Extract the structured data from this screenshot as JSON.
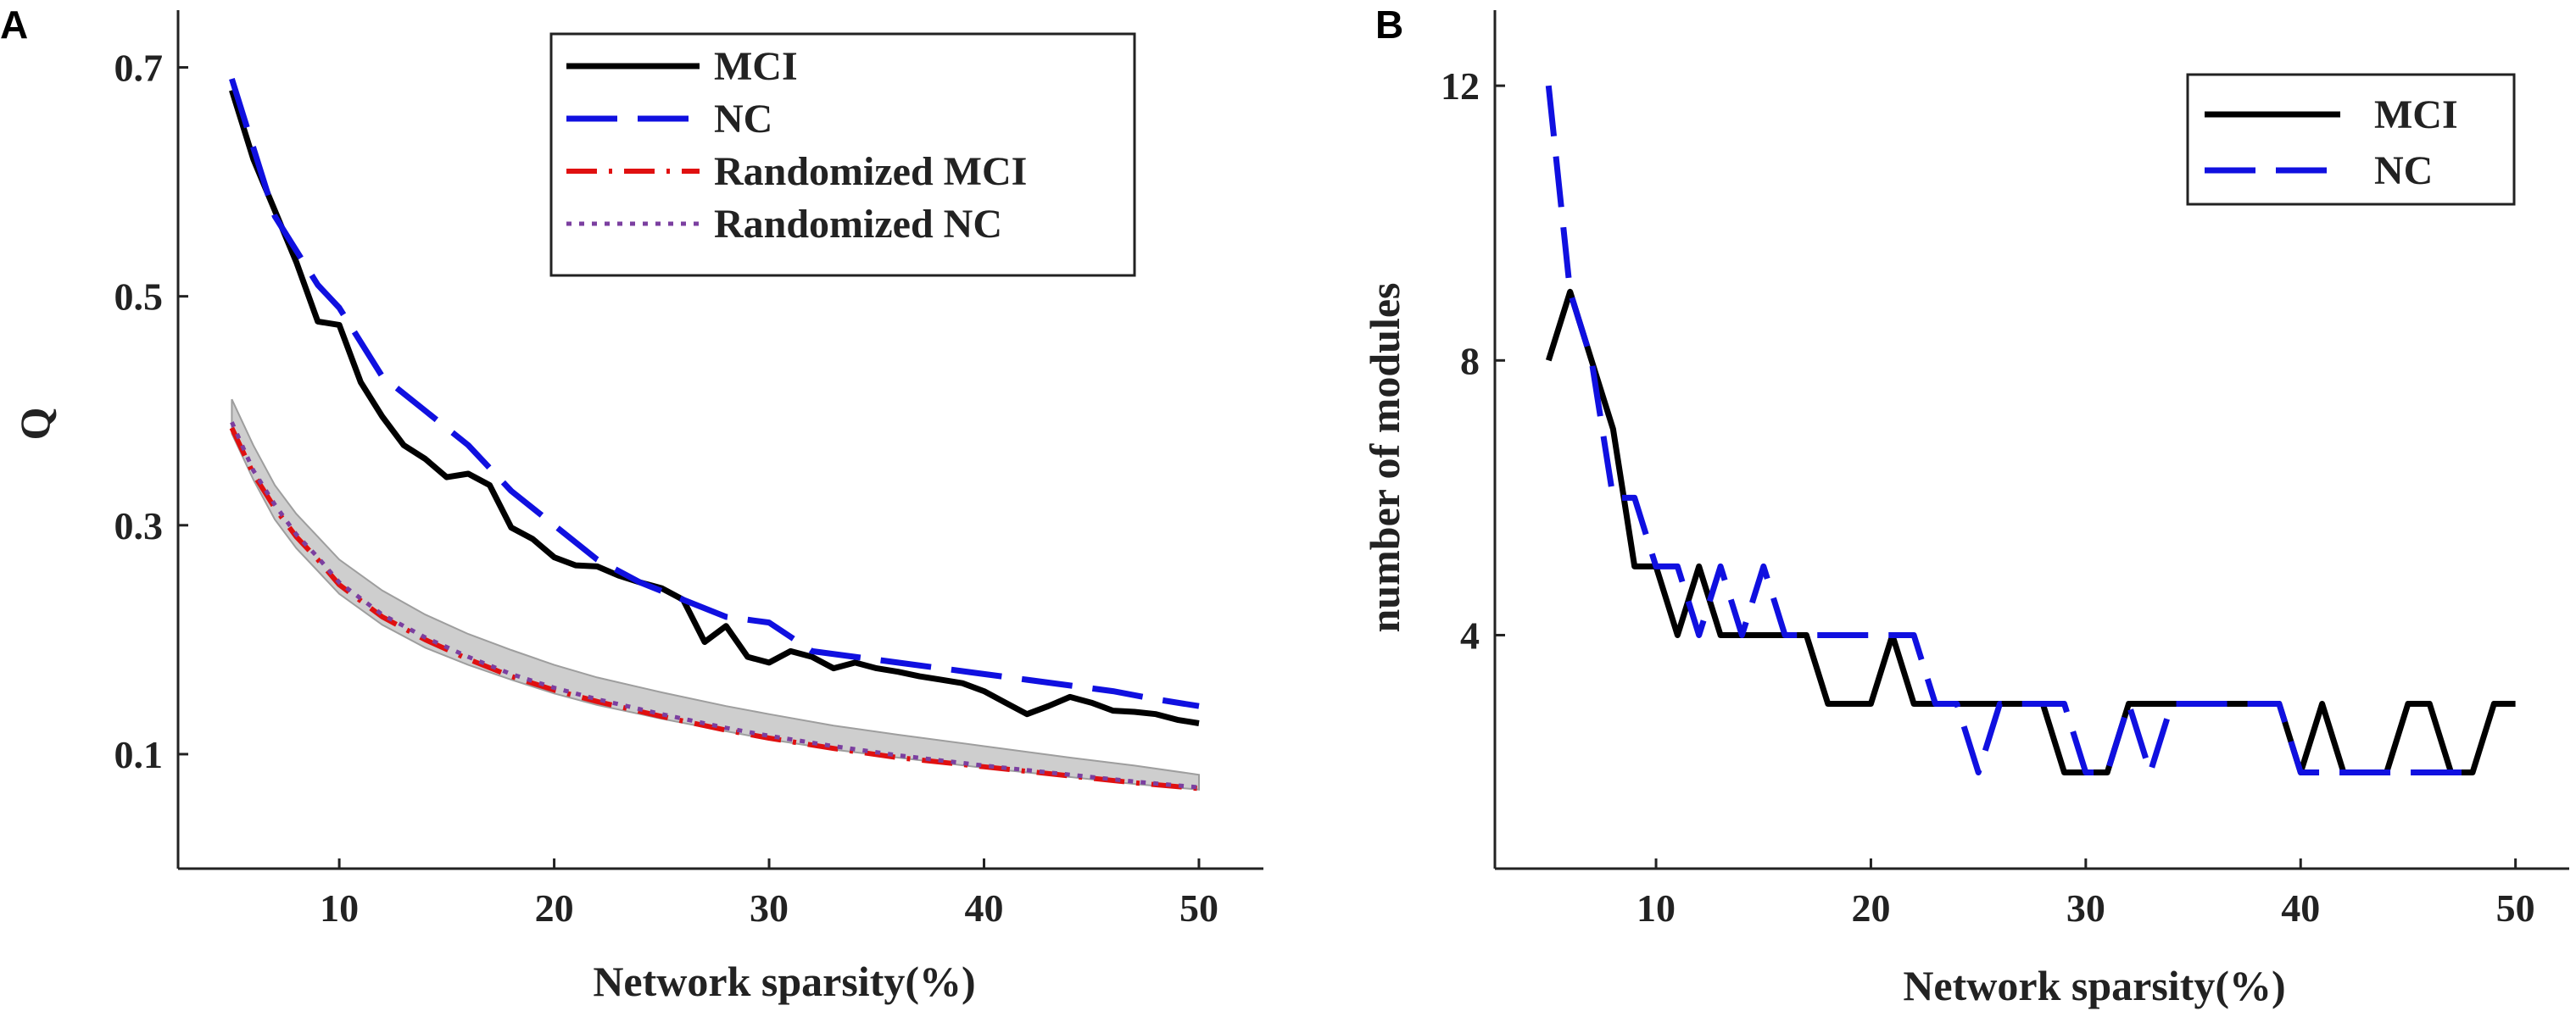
{
  "chart_data": [
    {
      "panel": "A",
      "type": "line",
      "xlabel": "Network sparsity(%)",
      "ylabel": "Q",
      "xlim": [
        2.5,
        53
      ],
      "ylim": [
        0.0,
        0.75
      ],
      "xticks": [
        10,
        20,
        30,
        40,
        50
      ],
      "yticks": [
        0.1,
        0.3,
        0.5,
        0.7
      ],
      "ytick_labels": [
        "0.1",
        "0.3",
        "0.5",
        "0.7"
      ],
      "legend_position": "top-right",
      "band": {
        "x": [
          5,
          6,
          7,
          8,
          9,
          10,
          12,
          14,
          16,
          18,
          20,
          22,
          25,
          28,
          30,
          33,
          36,
          40,
          44,
          47,
          50
        ],
        "lower": [
          0.38,
          0.34,
          0.305,
          0.28,
          0.26,
          0.24,
          0.213,
          0.193,
          0.178,
          0.165,
          0.153,
          0.143,
          0.131,
          0.12,
          0.113,
          0.104,
          0.097,
          0.088,
          0.08,
          0.074,
          0.069
        ],
        "upper": [
          0.41,
          0.37,
          0.335,
          0.31,
          0.29,
          0.27,
          0.243,
          0.222,
          0.205,
          0.191,
          0.178,
          0.167,
          0.154,
          0.142,
          0.135,
          0.125,
          0.117,
          0.107,
          0.097,
          0.09,
          0.082
        ],
        "color": "#bdbdbd"
      },
      "series": [
        {
          "name": "MCI",
          "color": "#000000",
          "dash": "solid",
          "width": 7,
          "x": [
            5,
            6,
            7,
            8,
            9,
            10,
            11,
            12,
            13,
            14,
            15,
            16,
            17,
            18,
            19,
            20,
            21,
            22,
            23,
            24,
            25,
            26,
            27,
            28,
            29,
            30,
            31,
            32,
            33,
            34,
            35,
            36,
            37,
            38,
            39,
            40,
            41,
            42,
            43,
            44,
            45,
            46,
            47,
            48,
            49,
            50
          ],
          "y": [
            0.68,
            0.62,
            0.575,
            0.53,
            0.478,
            0.475,
            0.425,
            0.395,
            0.37,
            0.358,
            0.342,
            0.345,
            0.335,
            0.298,
            0.288,
            0.272,
            0.265,
            0.264,
            0.256,
            0.25,
            0.245,
            0.235,
            0.198,
            0.212,
            0.185,
            0.18,
            0.19,
            0.185,
            0.175,
            0.18,
            0.175,
            0.172,
            0.168,
            0.165,
            0.162,
            0.155,
            0.145,
            0.135,
            0.142,
            0.15,
            0.145,
            0.138,
            0.137,
            0.135,
            0.13,
            0.127
          ]
        },
        {
          "name": "NC",
          "color": "#1010e0",
          "dash": "long",
          "width": 7,
          "x": [
            5,
            6,
            7,
            8,
            9,
            10,
            12,
            14,
            16,
            18,
            20,
            22,
            24,
            26,
            28,
            30,
            32,
            34,
            36,
            38,
            40,
            42,
            44,
            46,
            48,
            50
          ],
          "y": [
            0.69,
            0.63,
            0.57,
            0.54,
            0.51,
            0.49,
            0.43,
            0.4,
            0.37,
            0.33,
            0.3,
            0.27,
            0.25,
            0.235,
            0.22,
            0.215,
            0.19,
            0.185,
            0.18,
            0.175,
            0.17,
            0.165,
            0.16,
            0.155,
            0.148,
            0.142
          ]
        },
        {
          "name": "Randomized MCI",
          "color": "#e01010",
          "dash": "dashdot",
          "width": 6,
          "x": [
            5,
            6,
            7,
            8,
            9,
            10,
            12,
            14,
            16,
            18,
            20,
            22,
            25,
            28,
            30,
            33,
            36,
            40,
            44,
            47,
            50
          ],
          "y": [
            0.385,
            0.345,
            0.315,
            0.29,
            0.27,
            0.248,
            0.22,
            0.2,
            0.183,
            0.168,
            0.156,
            0.146,
            0.133,
            0.121,
            0.114,
            0.105,
            0.097,
            0.089,
            0.081,
            0.075,
            0.07
          ]
        },
        {
          "name": "Randomized NC",
          "color": "#7b3fa0",
          "dash": "dot",
          "width": 5,
          "x": [
            5,
            6,
            7,
            8,
            9,
            10,
            12,
            14,
            16,
            18,
            20,
            22,
            25,
            28,
            30,
            33,
            36,
            40,
            44,
            47,
            50
          ],
          "y": [
            0.39,
            0.348,
            0.318,
            0.292,
            0.272,
            0.25,
            0.222,
            0.202,
            0.185,
            0.17,
            0.158,
            0.148,
            0.135,
            0.123,
            0.116,
            0.107,
            0.099,
            0.09,
            0.082,
            0.076,
            0.071
          ]
        }
      ]
    },
    {
      "panel": "B",
      "type": "line",
      "xlabel": "Network sparsity(%)",
      "ylabel": "number of modules",
      "xlim": [
        2.5,
        52.5
      ],
      "ylim": [
        0.6,
        13.1
      ],
      "xticks": [
        10,
        20,
        30,
        40,
        50
      ],
      "yticks": [
        4,
        8,
        12
      ],
      "ytick_labels": [
        "4",
        "8",
        "12"
      ],
      "legend_position": "top-right",
      "series": [
        {
          "name": "MCI",
          "color": "#000000",
          "dash": "solid",
          "width": 7,
          "x": [
            5,
            6,
            7,
            8,
            9,
            10,
            11,
            12,
            13,
            14,
            15,
            16,
            17,
            18,
            19,
            20,
            21,
            22,
            23,
            24,
            25,
            26,
            27,
            28,
            29,
            30,
            31,
            32,
            33,
            34,
            35,
            36,
            37,
            38,
            39,
            40,
            41,
            42,
            43,
            44,
            45,
            46,
            47,
            48,
            49,
            50
          ],
          "y": [
            8,
            9,
            8,
            7,
            5,
            5,
            4,
            5,
            4,
            4,
            4,
            4,
            4,
            3,
            3,
            3,
            4,
            3,
            3,
            3,
            3,
            3,
            3,
            3,
            2,
            2,
            2,
            3,
            3,
            3,
            3,
            3,
            3,
            3,
            3,
            2,
            3,
            2,
            2,
            2,
            3,
            3,
            2,
            2,
            3,
            3
          ]
        },
        {
          "name": "NC",
          "color": "#1010e0",
          "dash": "long",
          "width": 7,
          "x": [
            5,
            6,
            7,
            8,
            9,
            10,
            11,
            12,
            13,
            14,
            15,
            16,
            17,
            18,
            19,
            20,
            21,
            22,
            23,
            24,
            25,
            26,
            27,
            28,
            29,
            30,
            31,
            32,
            33,
            34,
            35,
            36,
            37,
            38,
            39,
            40,
            41,
            42,
            43,
            44,
            45,
            46,
            47,
            48
          ],
          "y": [
            12,
            9,
            8,
            6,
            6,
            5,
            5,
            4,
            5,
            4,
            5,
            4,
            4,
            4,
            4,
            4,
            4,
            4,
            3,
            3,
            2,
            3,
            3,
            3,
            3,
            2,
            2,
            3,
            2,
            3,
            3,
            3,
            3,
            3,
            3,
            2,
            2,
            2,
            2,
            2,
            2,
            2,
            2,
            2
          ]
        }
      ]
    }
  ]
}
